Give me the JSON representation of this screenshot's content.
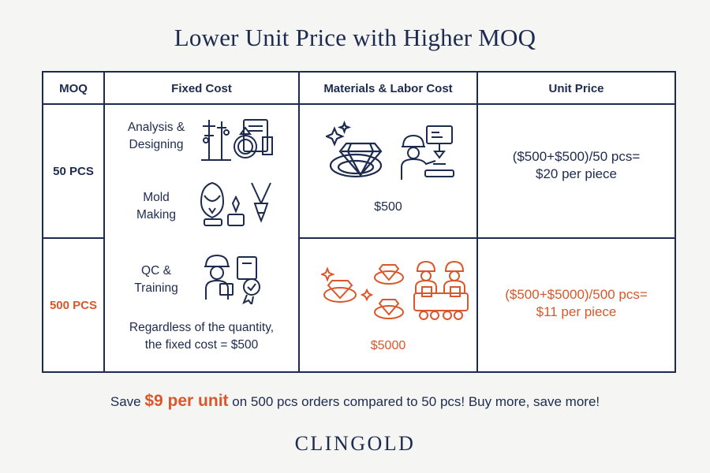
{
  "title": "Lower Unit Price with Higher MOQ",
  "colors": {
    "navy": "#1d2b4e",
    "accent": "#d9572b",
    "background": "#f5f5f3"
  },
  "table": {
    "headers": [
      "MOQ",
      "Fixed Cost",
      "Materials & Labor Cost",
      "Unit Price"
    ],
    "rows": [
      {
        "moq": "50 PCS",
        "materials_cost": "$500",
        "unit_price_formula": "($500+$500)/50 pcs=",
        "unit_price_result": "$20 per piece",
        "color": "navy"
      },
      {
        "moq": "500 PCS",
        "materials_cost": "$5000",
        "unit_price_formula": "($500+$5000)/500 pcs=",
        "unit_price_result": "$11 per piece",
        "color": "accent"
      }
    ],
    "fixed_cost_items": [
      {
        "line1": "Analysis &",
        "line2": "Designing",
        "icon": "jewelry-display-design-icon"
      },
      {
        "line1": "Mold",
        "line2": "Making",
        "icon": "necklace-mold-cutter-icon"
      },
      {
        "line1": "QC &",
        "line2": "Training",
        "icon": "inspector-certificate-icon"
      }
    ],
    "fixed_cost_note_line1": "Regardless of the quantity,",
    "fixed_cost_note_line2": "the fixed cost = $500"
  },
  "footer": {
    "prefix": "Save",
    "highlight": "$9 per unit",
    "suffix": "on 500 pcs orders compared to 50 pcs! Buy more, save more!"
  },
  "brand": "CLINGOLD"
}
